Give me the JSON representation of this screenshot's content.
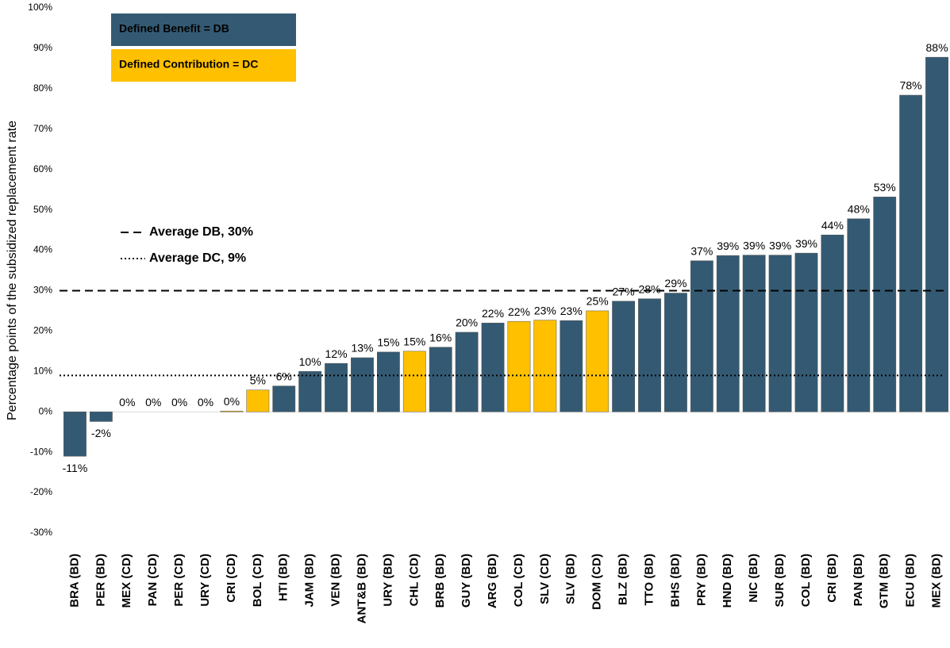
{
  "chart_data": {
    "type": "bar",
    "y_label": "Percentage points of the subsidized replacement rate",
    "categories": [
      "BRA (BD)",
      "PER (BD)",
      "MEX (CD)",
      "PAN (CD)",
      "PER (CD)",
      "URY (CD)",
      "CRI (CD)",
      "BOL (CD)",
      "HTI (BD)",
      "JAM (BD)",
      "VEN (BD)",
      "ANT&B (BD)",
      "URY (BD)",
      "CHL (CD)",
      "BRB (BD)",
      "GUY (BD)",
      "ARG (BD)",
      "COL (CD)",
      "SLV (CD)",
      "SLV (BD)",
      "DOM (CD)",
      "BLZ (BD)",
      "TTO (BD)",
      "BHS (BD)",
      "PRY (BD)",
      "HND (BD)",
      "NIC (BD)",
      "SUR (BD)",
      "COL (BD)",
      "CRI (BD)",
      "PAN (BD)",
      "GTM (BD)",
      "ECU (BD)",
      "MEX (BD)"
    ],
    "series": [
      {
        "name": "Defined Benefit = DB",
        "color": "#345a73",
        "values": [
          -11,
          -2.4,
          null,
          null,
          null,
          null,
          null,
          null,
          6.4,
          10,
          12,
          13.4,
          14.8,
          null,
          16,
          19.7,
          22,
          null,
          null,
          22.6,
          null,
          27.4,
          28,
          29.4,
          37.4,
          38.7,
          38.8,
          38.8,
          39.3,
          43.8,
          47.8,
          53.2,
          78.4,
          87.8
        ],
        "value_labels": [
          "-11%",
          "-2%",
          null,
          null,
          null,
          null,
          null,
          null,
          "6%",
          "10%",
          "12%",
          "13%",
          "15%",
          null,
          "16%",
          "20%",
          "22%",
          null,
          null,
          "23%",
          null,
          "27%",
          "28%",
          "29%",
          "37%",
          "39%",
          "39%",
          "39%",
          "39%",
          "44%",
          "48%",
          "53%",
          "78%",
          "88%"
        ]
      },
      {
        "name": "Defined Contribution = DC",
        "color": "#ffc000",
        "values": [
          null,
          null,
          0,
          0,
          0,
          0,
          0.2,
          5.4,
          null,
          null,
          null,
          null,
          null,
          15,
          null,
          null,
          null,
          22.4,
          22.7,
          null,
          25,
          null,
          null,
          null,
          null,
          null,
          null,
          null,
          null,
          null,
          null,
          null,
          null,
          null
        ],
        "value_labels": [
          null,
          null,
          "0%",
          "0%",
          "0%",
          "0%",
          "0%",
          "5%",
          null,
          null,
          null,
          null,
          null,
          "15%",
          null,
          null,
          null,
          "22%",
          "23%",
          null,
          "25%",
          null,
          null,
          null,
          null,
          null,
          null,
          null,
          null,
          null,
          null,
          null,
          null,
          null
        ]
      }
    ],
    "reference_lines": [
      {
        "label": "Average DB, 30%",
        "value": 30,
        "style": "dashed"
      },
      {
        "label": "Average DC, 9%",
        "value": 9,
        "style": "dotted"
      }
    ],
    "ylim": [
      -30,
      100
    ],
    "yticks": [
      {
        "value": -30,
        "label": "-30%"
      },
      {
        "value": -20,
        "label": "-20%"
      },
      {
        "value": -10,
        "label": "-10%"
      },
      {
        "value": 0,
        "label": "0%"
      },
      {
        "value": 10,
        "label": "10%"
      },
      {
        "value": 20,
        "label": "20%"
      },
      {
        "value": 30,
        "label": "30%"
      },
      {
        "value": 40,
        "label": "40%"
      },
      {
        "value": 50,
        "label": "50%"
      },
      {
        "value": 60,
        "label": "60%"
      },
      {
        "value": 70,
        "label": "70%"
      },
      {
        "value": 80,
        "label": "80%"
      },
      {
        "value": 90,
        "label": "90%"
      },
      {
        "value": 100,
        "label": "100%"
      }
    ],
    "grid": false
  }
}
